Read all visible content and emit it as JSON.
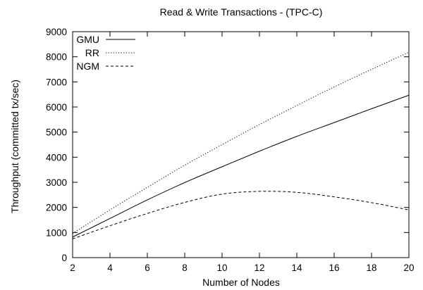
{
  "chart_data": {
    "type": "line",
    "title": "Read & Write Transactions - (TPC-C)",
    "xlabel": "Number of Nodes",
    "ylabel": "Throughput (committed tx/sec)",
    "xlim": [
      2,
      20
    ],
    "ylim": [
      0,
      9000
    ],
    "xticks": [
      2,
      4,
      6,
      8,
      10,
      12,
      14,
      16,
      18,
      20
    ],
    "yticks": [
      0,
      1000,
      2000,
      3000,
      4000,
      5000,
      6000,
      7000,
      8000,
      9000
    ],
    "grid": false,
    "legend_position": "top-left",
    "x": [
      2,
      4,
      6,
      8,
      10,
      12,
      14,
      16,
      18,
      20
    ],
    "series": [
      {
        "name": "GMU",
        "style": "solid",
        "values": [
          820,
          1560,
          2300,
          2990,
          3620,
          4240,
          4830,
          5380,
          5930,
          6470
        ]
      },
      {
        "name": "RR",
        "style": "dotted",
        "values": [
          960,
          1900,
          2800,
          3680,
          4500,
          5300,
          6060,
          6800,
          7500,
          8180
        ]
      },
      {
        "name": "NGM",
        "style": "dashed",
        "values": [
          750,
          1270,
          1760,
          2200,
          2530,
          2640,
          2600,
          2420,
          2190,
          1900
        ]
      }
    ]
  }
}
